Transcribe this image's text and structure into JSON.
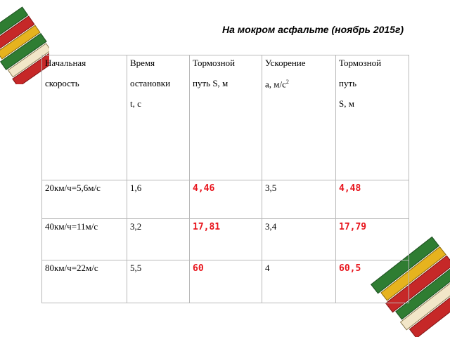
{
  "title": "На мокром асфальте (ноябрь 2015г)",
  "headers": [
    [
      "Начальная",
      "скорость"
    ],
    [
      "Время",
      "остановки",
      "t, с"
    ],
    [
      "Тормозной",
      "путь S, м"
    ],
    [
      "Ускорение",
      "а, м/с"
    ],
    [
      "Тормозной",
      "путь",
      "S, м"
    ]
  ],
  "accel_sup": "2",
  "rows": [
    {
      "speed": "20км/ч=5,6м/с",
      "time": "1,6",
      "dist": "4,46",
      "accel": "3,5",
      "dist2": "4,48"
    },
    {
      "speed": "40км/ч=11м/с",
      "time": "3,2",
      "dist": "17,81",
      "accel": "3,4",
      "dist2": "17,79"
    },
    {
      "speed": "80км/ч=22м/с",
      "time": "5,5",
      "dist": "60",
      "accel": "4",
      "dist2": "60,5"
    }
  ],
  "colors": {
    "value_red": "#e8141c",
    "book_green": "#2f7d32",
    "book_red": "#c62828",
    "book_yellow": "#e6b31e"
  }
}
